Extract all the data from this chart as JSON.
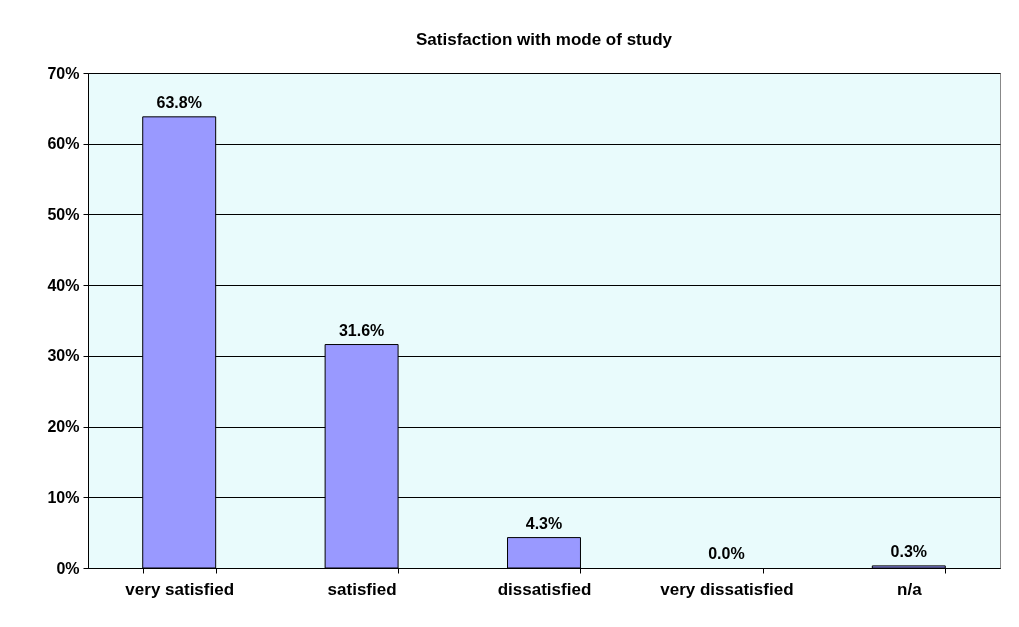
{
  "chart_data": {
    "type": "bar",
    "title": "Satisfaction with mode of study",
    "categories": [
      "very satisfied",
      "satisfied",
      "dissatisfied",
      "very dissatisfied",
      "n/a"
    ],
    "values": [
      63.8,
      31.6,
      4.3,
      0.0,
      0.3
    ],
    "value_labels": [
      "63.8%",
      "31.6%",
      "4.3%",
      "0.0%",
      "0.3%"
    ],
    "color": "#9999ff",
    "ylim": [
      0,
      70
    ],
    "yticks": [
      {
        "value": 0,
        "label": "0%"
      },
      {
        "value": 10,
        "label": "10%"
      },
      {
        "value": 20,
        "label": "20%"
      },
      {
        "value": 30,
        "label": "30%"
      },
      {
        "value": 40,
        "label": "40%"
      },
      {
        "value": 50,
        "label": "50%"
      },
      {
        "value": 60,
        "label": "60%"
      },
      {
        "value": 70,
        "label": "70%"
      }
    ],
    "grid": true
  }
}
